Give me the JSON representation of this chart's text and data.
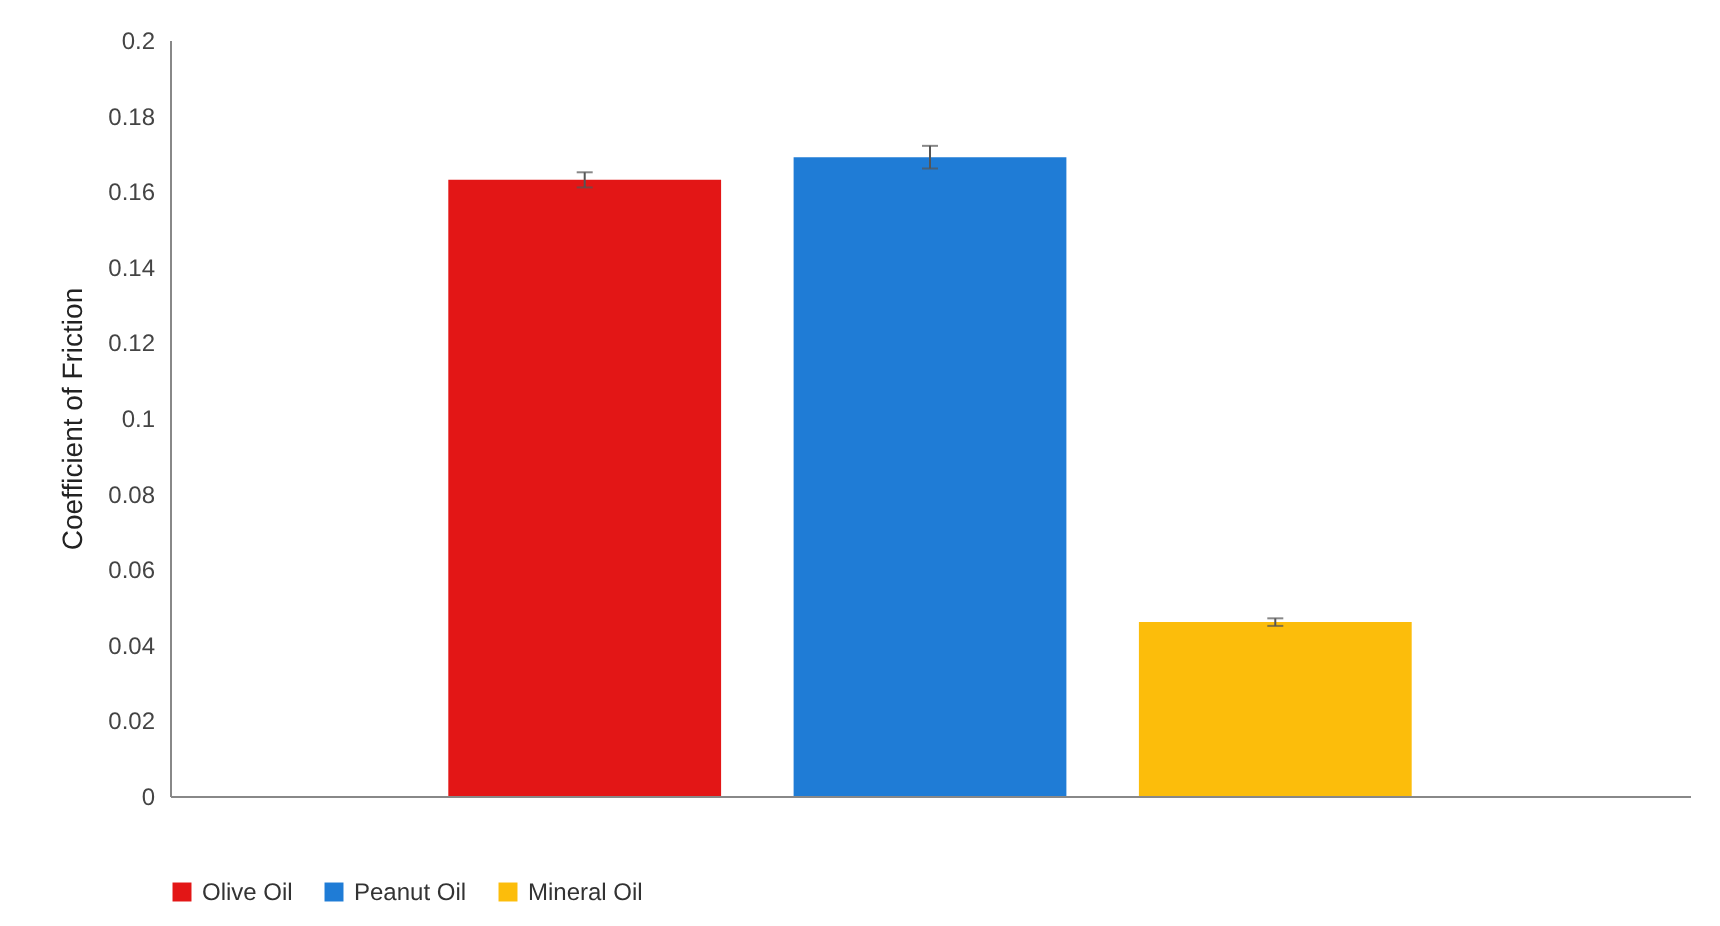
{
  "chart_data": {
    "type": "bar",
    "ylabel": "Coefficient of Friction",
    "categories": [
      null
    ],
    "series": [
      {
        "name": "Olive Oil",
        "color": "#e31616",
        "values": [
          0.163
        ],
        "errors": [
          0.002
        ]
      },
      {
        "name": "Peanut Oil",
        "color": "#1f7cd6",
        "values": [
          0.169
        ],
        "errors": [
          0.003
        ]
      },
      {
        "name": "Mineral Oil",
        "color": "#fcbd0b",
        "values": [
          0.046
        ],
        "errors": [
          0.001
        ]
      }
    ],
    "ylim": [
      0,
      0.2
    ],
    "yticks": [
      0,
      0.02,
      0.04,
      0.06,
      0.08,
      0.1,
      0.12,
      0.14,
      0.16,
      0.18,
      0.2
    ],
    "grid": false,
    "legend": "bottom"
  }
}
